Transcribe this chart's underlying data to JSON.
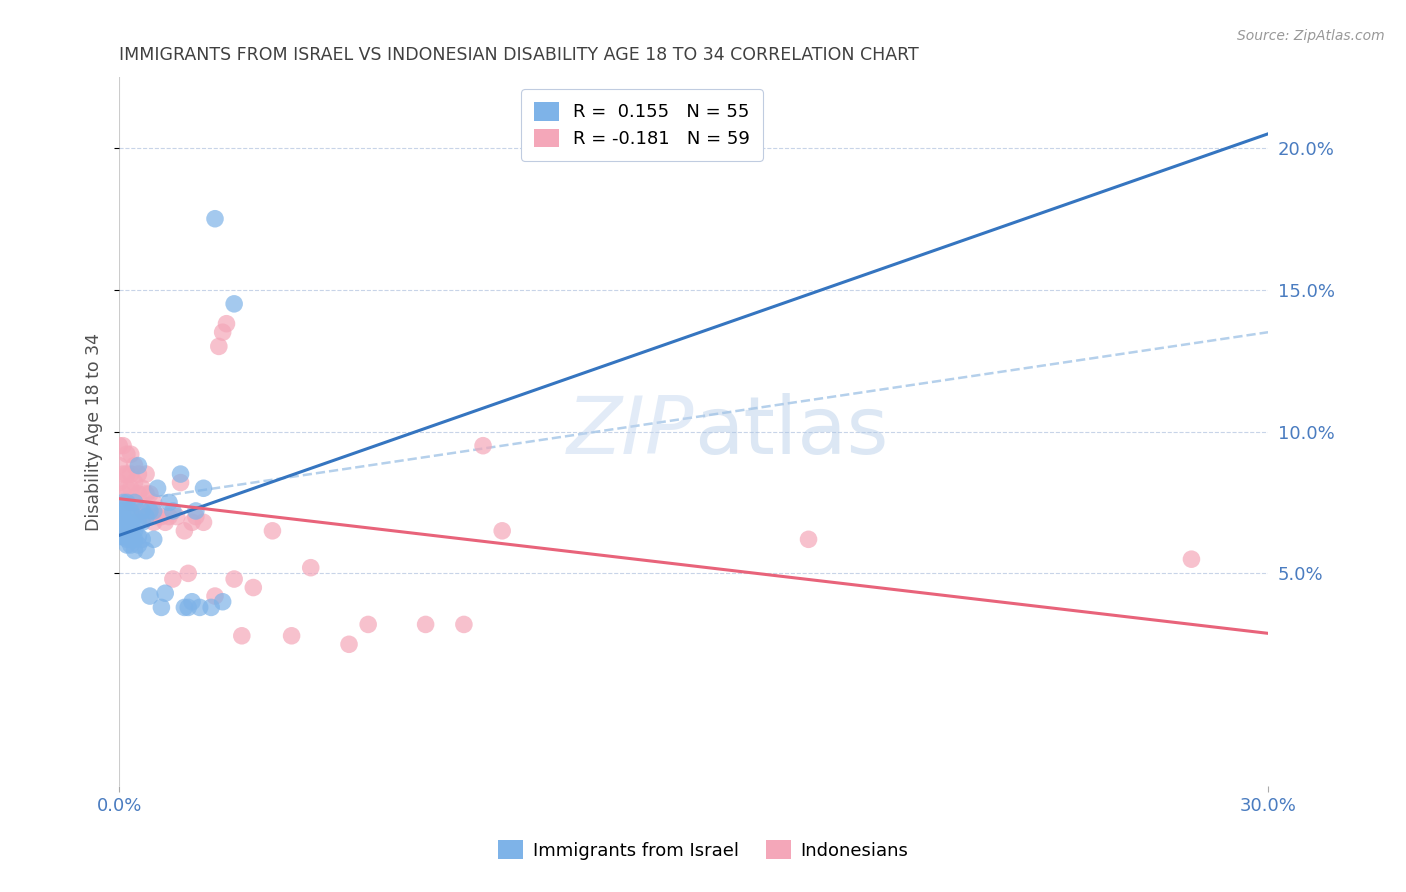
{
  "title": "IMMIGRANTS FROM ISRAEL VS INDONESIAN DISABILITY AGE 18 TO 34 CORRELATION CHART",
  "source": "Source: ZipAtlas.com",
  "ylabel": "Disability Age 18 to 34",
  "xlim": [
    0.0,
    0.3
  ],
  "ylim": [
    -0.025,
    0.225
  ],
  "yticks": [
    0.05,
    0.1,
    0.15,
    0.2
  ],
  "ytick_labels": [
    "5.0%",
    "10.0%",
    "15.0%",
    "20.0%"
  ],
  "legend1_label": "R =  0.155   N = 55",
  "legend2_label": "R = -0.181   N = 59",
  "legend_labels": [
    "Immigrants from Israel",
    "Indonesians"
  ],
  "israel_color": "#7eb3e8",
  "indonesian_color": "#f4a7b9",
  "israel_line_color": "#3575c0",
  "indonesian_line_color": "#e8637a",
  "dashed_line_color": "#a8c8e8",
  "background_color": "#ffffff",
  "grid_color": "#c8d4e8",
  "title_color": "#404040",
  "axis_label_color": "#505050",
  "tick_color": "#4a7cc0",
  "israel_x": [
    0.0,
    0.0,
    0.0,
    0.0,
    0.0,
    0.001,
    0.001,
    0.001,
    0.001,
    0.001,
    0.002,
    0.002,
    0.002,
    0.002,
    0.002,
    0.002,
    0.003,
    0.003,
    0.003,
    0.003,
    0.003,
    0.004,
    0.004,
    0.004,
    0.004,
    0.004,
    0.005,
    0.005,
    0.005,
    0.005,
    0.006,
    0.006,
    0.006,
    0.007,
    0.007,
    0.008,
    0.008,
    0.009,
    0.009,
    0.01,
    0.011,
    0.012,
    0.013,
    0.014,
    0.016,
    0.017,
    0.018,
    0.019,
    0.02,
    0.021,
    0.022,
    0.024,
    0.025,
    0.027,
    0.03
  ],
  "israel_y": [
    0.063,
    0.065,
    0.068,
    0.07,
    0.072,
    0.063,
    0.065,
    0.068,
    0.072,
    0.075,
    0.06,
    0.062,
    0.065,
    0.068,
    0.072,
    0.075,
    0.06,
    0.062,
    0.065,
    0.068,
    0.072,
    0.058,
    0.062,
    0.065,
    0.07,
    0.075,
    0.06,
    0.063,
    0.068,
    0.088,
    0.062,
    0.068,
    0.072,
    0.058,
    0.07,
    0.042,
    0.072,
    0.062,
    0.072,
    0.08,
    0.038,
    0.043,
    0.075,
    0.072,
    0.085,
    0.038,
    0.038,
    0.04,
    0.072,
    0.038,
    0.08,
    0.038,
    0.175,
    0.04,
    0.145
  ],
  "indonesian_x": [
    0.0,
    0.0,
    0.0,
    0.001,
    0.001,
    0.001,
    0.002,
    0.002,
    0.002,
    0.002,
    0.003,
    0.003,
    0.003,
    0.003,
    0.004,
    0.004,
    0.004,
    0.005,
    0.005,
    0.005,
    0.006,
    0.006,
    0.007,
    0.007,
    0.007,
    0.008,
    0.008,
    0.009,
    0.009,
    0.01,
    0.011,
    0.012,
    0.013,
    0.014,
    0.015,
    0.016,
    0.017,
    0.018,
    0.019,
    0.02,
    0.022,
    0.025,
    0.026,
    0.027,
    0.028,
    0.03,
    0.032,
    0.035,
    0.04,
    0.045,
    0.05,
    0.06,
    0.065,
    0.08,
    0.09,
    0.095,
    0.1,
    0.18,
    0.28
  ],
  "indonesian_y": [
    0.082,
    0.088,
    0.095,
    0.078,
    0.085,
    0.095,
    0.075,
    0.08,
    0.085,
    0.092,
    0.075,
    0.08,
    0.085,
    0.092,
    0.075,
    0.082,
    0.088,
    0.072,
    0.078,
    0.085,
    0.072,
    0.08,
    0.07,
    0.078,
    0.085,
    0.07,
    0.078,
    0.068,
    0.075,
    0.07,
    0.07,
    0.068,
    0.07,
    0.048,
    0.07,
    0.082,
    0.065,
    0.05,
    0.068,
    0.07,
    0.068,
    0.042,
    0.13,
    0.135,
    0.138,
    0.048,
    0.028,
    0.045,
    0.065,
    0.028,
    0.052,
    0.025,
    0.032,
    0.032,
    0.032,
    0.095,
    0.065,
    0.062,
    0.055
  ]
}
